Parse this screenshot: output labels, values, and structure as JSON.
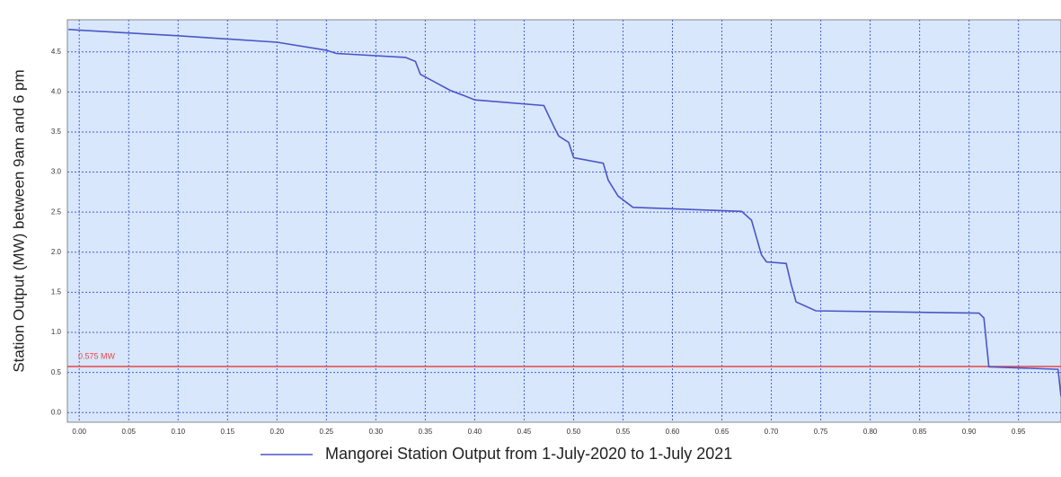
{
  "chart_data": {
    "type": "line",
    "y_label": "Station Output (MW) between 9am and 6 pm",
    "x": [
      -0.011,
      0.0,
      0.1,
      0.2,
      0.25,
      0.26,
      0.33,
      0.34,
      0.345,
      0.36,
      0.375,
      0.39,
      0.4,
      0.47,
      0.48,
      0.485,
      0.495,
      0.5,
      0.53,
      0.535,
      0.545,
      0.56,
      0.67,
      0.68,
      0.69,
      0.695,
      0.715,
      0.72,
      0.725,
      0.745,
      0.91,
      0.915,
      0.92,
      0.99,
      0.993
    ],
    "series": [
      {
        "name": "Mangorei Station Output from 1-July-2020 to 1-July 2021",
        "color": "#4b56c9",
        "values": [
          4.78,
          4.77,
          4.7,
          4.62,
          4.52,
          4.48,
          4.43,
          4.38,
          4.22,
          4.12,
          4.02,
          3.95,
          3.9,
          3.83,
          3.57,
          3.45,
          3.37,
          3.18,
          3.11,
          2.9,
          2.7,
          2.56,
          2.51,
          2.4,
          1.97,
          1.88,
          1.86,
          1.6,
          1.38,
          1.27,
          1.24,
          1.18,
          0.57,
          0.54,
          0.2
        ]
      }
    ],
    "threshold": {
      "value": 0.575,
      "label": "0.575 MW",
      "color": "#e8474a"
    },
    "xlim": [
      -0.012,
      0.993
    ],
    "ylim": [
      -0.12,
      4.9
    ],
    "xticks": [
      {
        "value": 0,
        "label": "0.00"
      },
      0.05,
      {
        "value": 0.1,
        "label": "0.10"
      },
      0.15,
      {
        "value": 0.2,
        "label": "0.20"
      },
      0.25,
      {
        "value": 0.3,
        "label": "0.30"
      },
      0.35,
      {
        "value": 0.4,
        "label": "0.40"
      },
      0.45,
      {
        "value": 0.5,
        "label": "0.50"
      },
      0.55,
      {
        "value": 0.6,
        "label": "0.60"
      },
      0.65,
      {
        "value": 0.7,
        "label": "0.70"
      },
      0.75,
      {
        "value": 0.8,
        "label": "0.80"
      },
      0.85,
      {
        "value": 0.9,
        "label": "0.90"
      },
      0.95
    ],
    "yticks": [
      {
        "value": 0,
        "label": "0.0"
      },
      0.5,
      {
        "value": 1,
        "label": "1.0"
      },
      1.5,
      {
        "value": 2,
        "label": "2.0"
      },
      2.5,
      {
        "value": 3,
        "label": "3.0"
      },
      3.5,
      {
        "value": 4,
        "label": "4.0"
      },
      4.5
    ],
    "grid": true,
    "legend": "bottom"
  }
}
